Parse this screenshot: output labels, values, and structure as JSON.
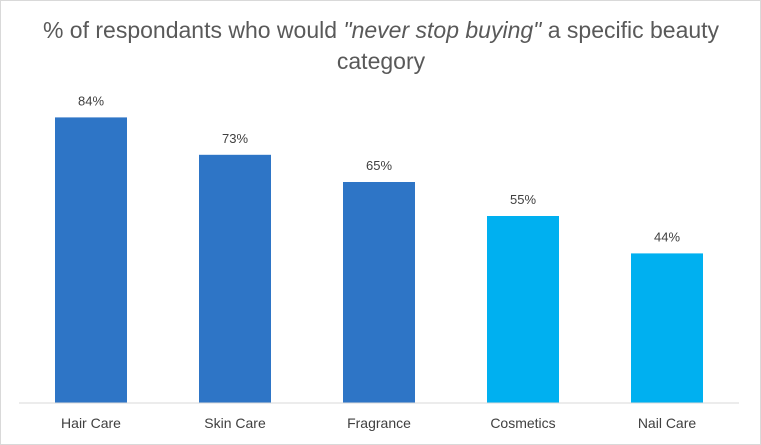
{
  "chart_data": {
    "type": "bar",
    "title_parts": {
      "before": "% of respondants who would ",
      "emphasis": "\"never stop buying\"",
      "after": " a specific beauty category"
    },
    "categories": [
      "Hair Care",
      "Skin Care",
      "Fragrance",
      "Cosmetics",
      "Nail Care"
    ],
    "values": [
      84,
      73,
      65,
      55,
      44
    ],
    "data_labels": [
      "84%",
      "73%",
      "65%",
      "55%",
      "44%"
    ],
    "bar_colors": [
      "#2e75c6",
      "#2e75c6",
      "#2e75c6",
      "#00b0f0",
      "#00b0f0"
    ],
    "ylim": [
      0,
      100
    ],
    "grid": false,
    "legend": "none"
  }
}
